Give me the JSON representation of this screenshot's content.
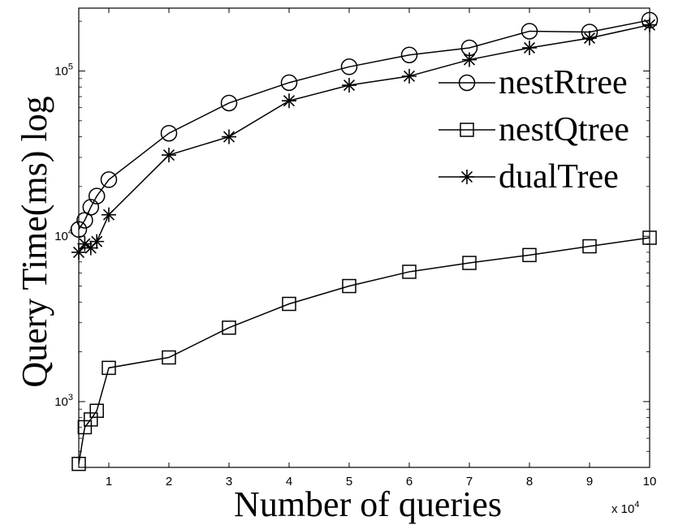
{
  "chart_data": {
    "type": "line",
    "title": "",
    "xlabel": "Number of queries",
    "ylabel": "Query Time(ms) log",
    "x_multiplier": "x 10",
    "x_multiplier_exp": "4",
    "xlim": [
      0.5,
      10
    ],
    "ylim": [
      400,
      240000
    ],
    "yscale": "log",
    "x_ticks": [
      1,
      2,
      3,
      4,
      5,
      6,
      7,
      8,
      9,
      10
    ],
    "x_tick_labels": [
      "1",
      "2",
      "3",
      "4",
      "5",
      "6",
      "7",
      "8",
      "9",
      "10"
    ],
    "y_ticks": [
      {
        "base": "10",
        "exp": "3",
        "value": 1000
      },
      {
        "base": "10",
        "exp": "4",
        "value": 10000
      },
      {
        "base": "10",
        "exp": "5",
        "value": 100000
      }
    ],
    "grid": false,
    "legend_position": "top-right",
    "x": [
      0.5,
      0.6,
      0.7,
      0.8,
      1,
      2,
      3,
      4,
      5,
      6,
      7,
      8,
      9,
      10
    ],
    "series": [
      {
        "name": "nestRtree",
        "marker": "circle",
        "values": [
          11000,
          12500,
          15000,
          17500,
          22000,
          42000,
          64000,
          85000,
          106000,
          125000,
          138000,
          174000,
          172000,
          203000
        ]
      },
      {
        "name": "nestQtree",
        "marker": "square",
        "values": [
          420,
          700,
          780,
          880,
          1600,
          1850,
          2800,
          3900,
          5000,
          6100,
          6900,
          7700,
          8700,
          9800
        ]
      },
      {
        "name": "dualTree",
        "marker": "star",
        "values": [
          8000,
          9000,
          8500,
          9300,
          13500,
          31000,
          40000,
          66000,
          82000,
          93000,
          117000,
          138000,
          158000,
          190000
        ]
      }
    ]
  }
}
